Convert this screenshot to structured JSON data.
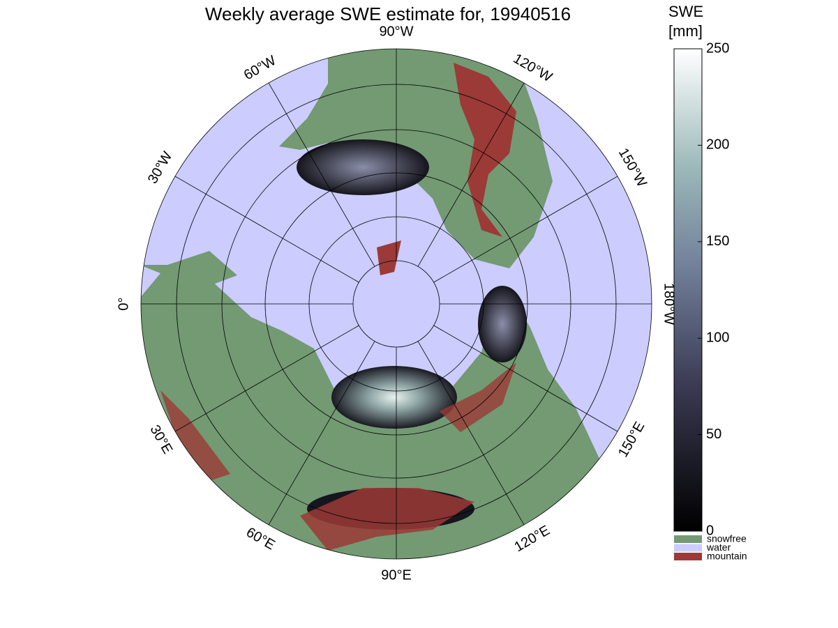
{
  "header": {
    "title": "Weekly average SWE estimate for, 19940516"
  },
  "map": {
    "longitude_labels": [
      "90°W",
      "120°W",
      "150°W",
      "180°W",
      "150°E",
      "120°E",
      "90°E",
      "60°E",
      "30°E",
      "0°",
      "30°W",
      "60°W"
    ]
  },
  "colorbar": {
    "title": [
      "SWE",
      "[mm]"
    ],
    "range": [
      0,
      250
    ],
    "ticks": [
      0,
      50,
      100,
      150,
      200,
      250
    ]
  },
  "legend": [
    {
      "label": "snowfree",
      "color": "#739a73"
    },
    {
      "label": "water",
      "color": "#ccccff"
    },
    {
      "label": "mountain",
      "color": "#9b3a36"
    }
  ]
}
